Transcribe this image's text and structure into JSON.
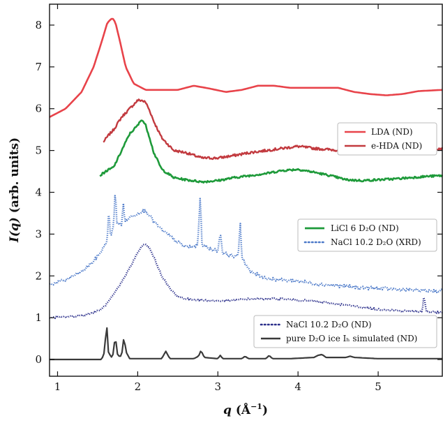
{
  "chart_data": {
    "type": "line",
    "xlabel": {
      "main": "q",
      "unit_prefix": " (Å",
      "unit_exp": "−1",
      "unit_suffix": ")"
    },
    "ylabel": {
      "main": "I(q)",
      "rest": " (arb. units)"
    },
    "xlim": [
      0.9,
      5.8
    ],
    "ylim": [
      -0.4,
      8.5
    ],
    "x_ticks": [
      "1",
      "2",
      "3",
      "4",
      "5"
    ],
    "x_tick_values": [
      1,
      2,
      3,
      4,
      5
    ],
    "y_ticks": [
      "0",
      "1",
      "2",
      "3",
      "4",
      "5",
      "6",
      "7",
      "8"
    ],
    "y_tick_values": [
      0,
      1,
      2,
      3,
      4,
      5,
      6,
      7,
      8
    ],
    "grid": false,
    "legends": [
      {
        "placement": "upper-right",
        "entries": [
          {
            "label": "LDA (ND)",
            "color": "#e8434a",
            "style": "solid"
          },
          {
            "label": "e-HDA (ND)",
            "color": "#c23a3f",
            "style": "solid"
          }
        ]
      },
      {
        "placement": "middle-right",
        "entries": [
          {
            "label": "LiCl 6 D₂O (ND)",
            "color": "#1e9a3a",
            "style": "solid"
          },
          {
            "label": "NaCl 10.2 D₂O (XRD)",
            "color": "#4a78c8",
            "style": "dotted"
          }
        ]
      },
      {
        "placement": "lower-right",
        "entries": [
          {
            "label": "NaCl 10.2 D₂O (ND)",
            "color": "#2a2e8a",
            "style": "dotted"
          },
          {
            "label": "pure D₂O ice Iₕ simulated (ND)",
            "color": "#3a3a3a",
            "style": "solid"
          }
        ]
      }
    ],
    "series": [
      {
        "name": "LDA (ND)",
        "color": "#e8434a",
        "style": "solid",
        "width": 2.6,
        "noise": 0,
        "x": [
          0.9,
          1.1,
          1.3,
          1.45,
          1.55,
          1.62,
          1.67,
          1.7,
          1.73,
          1.78,
          1.85,
          1.95,
          2.1,
          2.3,
          2.5,
          2.7,
          2.9,
          3.1,
          3.3,
          3.5,
          3.7,
          3.9,
          4.1,
          4.3,
          4.5,
          4.7,
          4.9,
          5.1,
          5.3,
          5.5,
          5.8
        ],
        "y": [
          5.8,
          6.0,
          6.4,
          7.0,
          7.6,
          8.05,
          8.15,
          8.15,
          8.0,
          7.6,
          7.0,
          6.6,
          6.45,
          6.45,
          6.45,
          6.55,
          6.48,
          6.4,
          6.45,
          6.55,
          6.55,
          6.5,
          6.5,
          6.5,
          6.5,
          6.4,
          6.35,
          6.32,
          6.35,
          6.42,
          6.45
        ]
      },
      {
        "name": "e-HDA (ND)",
        "color": "#c23a3f",
        "style": "solid",
        "width": 2.4,
        "noise": 0.06,
        "x": [
          1.57,
          1.63,
          1.7,
          1.8,
          1.9,
          1.95,
          2.0,
          2.05,
          2.1,
          2.15,
          2.2,
          2.3,
          2.45,
          2.6,
          2.8,
          3.0,
          3.2,
          3.4,
          3.6,
          3.8,
          4.0,
          4.2,
          4.4,
          4.6,
          4.8,
          5.0,
          5.2,
          5.4,
          5.6,
          5.8
        ],
        "y": [
          5.2,
          5.35,
          5.5,
          5.8,
          6.0,
          6.1,
          6.2,
          6.2,
          6.15,
          5.95,
          5.7,
          5.3,
          5.0,
          4.95,
          4.82,
          4.82,
          4.88,
          4.95,
          5.0,
          5.05,
          5.1,
          5.05,
          5.02,
          5.0,
          4.95,
          4.95,
          4.98,
          5.0,
          5.05,
          5.05
        ]
      },
      {
        "name": "LiCl 6 D₂O (ND)",
        "color": "#1e9a3a",
        "style": "solid",
        "width": 2.6,
        "noise": 0.05,
        "x": [
          1.53,
          1.6,
          1.7,
          1.8,
          1.9,
          2.0,
          2.05,
          2.1,
          2.15,
          2.2,
          2.3,
          2.45,
          2.6,
          2.8,
          3.0,
          3.2,
          3.4,
          3.6,
          3.8,
          4.0,
          4.2,
          4.4,
          4.6,
          4.8,
          5.0,
          5.2,
          5.4,
          5.6,
          5.8
        ],
        "y": [
          4.4,
          4.5,
          4.6,
          5.0,
          5.4,
          5.6,
          5.75,
          5.6,
          5.3,
          4.95,
          4.55,
          4.35,
          4.3,
          4.25,
          4.28,
          4.35,
          4.4,
          4.45,
          4.52,
          4.55,
          4.48,
          4.4,
          4.3,
          4.28,
          4.3,
          4.32,
          4.35,
          4.38,
          4.4
        ]
      },
      {
        "name": "NaCl 10.2 D₂O (XRD)",
        "color": "#4a78c8",
        "style": "dotted",
        "width": 2.4,
        "noise": 0.08,
        "x": [
          0.9,
          1.1,
          1.3,
          1.45,
          1.55,
          1.62,
          1.64,
          1.66,
          1.7,
          1.72,
          1.74,
          1.8,
          1.82,
          1.84,
          1.9,
          2.0,
          2.05,
          2.1,
          2.15,
          2.2,
          2.3,
          2.4,
          2.5,
          2.6,
          2.7,
          2.75,
          2.78,
          2.8,
          2.82,
          2.9,
          3.0,
          3.03,
          3.06,
          3.15,
          3.25,
          3.28,
          3.3,
          3.4,
          3.6,
          3.8,
          4.0,
          4.2,
          4.4,
          4.6,
          4.8,
          5.0,
          5.2,
          5.4,
          5.6,
          5.8
        ],
        "y": [
          1.8,
          1.9,
          2.1,
          2.35,
          2.6,
          2.85,
          3.6,
          2.95,
          3.2,
          4.1,
          3.3,
          3.2,
          3.8,
          3.3,
          3.4,
          3.5,
          3.55,
          3.55,
          3.45,
          3.3,
          3.1,
          2.95,
          2.8,
          2.7,
          2.7,
          2.75,
          3.95,
          2.8,
          2.72,
          2.65,
          2.6,
          3.05,
          2.55,
          2.5,
          2.45,
          3.25,
          2.45,
          2.1,
          1.95,
          1.9,
          1.88,
          1.82,
          1.78,
          1.75,
          1.72,
          1.7,
          1.68,
          1.66,
          1.65,
          1.64
        ]
      },
      {
        "name": "NaCl 10.2 D₂O (ND)",
        "color": "#2a2e8a",
        "style": "dotted",
        "width": 2.4,
        "noise": 0.04,
        "x": [
          0.9,
          1.1,
          1.3,
          1.45,
          1.55,
          1.62,
          1.7,
          1.8,
          1.9,
          2.0,
          2.05,
          2.1,
          2.15,
          2.2,
          2.3,
          2.4,
          2.5,
          2.6,
          2.8,
          3.0,
          3.2,
          3.4,
          3.6,
          3.8,
          4.0,
          4.2,
          4.4,
          4.6,
          4.8,
          5.0,
          5.2,
          5.4,
          5.55,
          5.57,
          5.6,
          5.8
        ],
        "y": [
          1.0,
          1.02,
          1.05,
          1.12,
          1.2,
          1.35,
          1.55,
          1.85,
          2.2,
          2.55,
          2.72,
          2.75,
          2.65,
          2.45,
          2.0,
          1.7,
          1.5,
          1.45,
          1.42,
          1.4,
          1.42,
          1.45,
          1.45,
          1.45,
          1.42,
          1.4,
          1.35,
          1.3,
          1.25,
          1.2,
          1.18,
          1.15,
          1.15,
          1.55,
          1.15,
          1.12
        ]
      },
      {
        "name": "pure D₂O ice Iₕ simulated (ND)",
        "color": "#3a3a3a",
        "style": "solid",
        "width": 2.2,
        "noise": 0,
        "x": [
          0.9,
          1.55,
          1.59,
          1.61,
          1.63,
          1.67,
          1.7,
          1.72,
          1.74,
          1.78,
          1.81,
          1.83,
          1.85,
          1.9,
          2.3,
          2.35,
          2.4,
          2.7,
          2.76,
          2.79,
          2.83,
          3.0,
          3.03,
          3.06,
          3.3,
          3.34,
          3.38,
          3.6,
          3.64,
          3.68,
          3.9,
          4.2,
          4.25,
          4.3,
          4.35,
          4.6,
          4.65,
          4.7,
          5.0,
          5.2,
          5.5,
          5.8
        ],
        "y": [
          0,
          0,
          0.2,
          1.0,
          0.2,
          0.05,
          0.15,
          0.65,
          0.15,
          0.05,
          0.2,
          0.6,
          0.2,
          0.02,
          0.02,
          0.2,
          0.02,
          0.02,
          0.08,
          0.22,
          0.05,
          0.02,
          0.1,
          0.02,
          0.02,
          0.08,
          0.02,
          0.02,
          0.1,
          0.02,
          0.02,
          0.05,
          0.1,
          0.12,
          0.05,
          0.05,
          0.08,
          0.05,
          0.02,
          0.02,
          0.02,
          0.02
        ]
      }
    ]
  }
}
